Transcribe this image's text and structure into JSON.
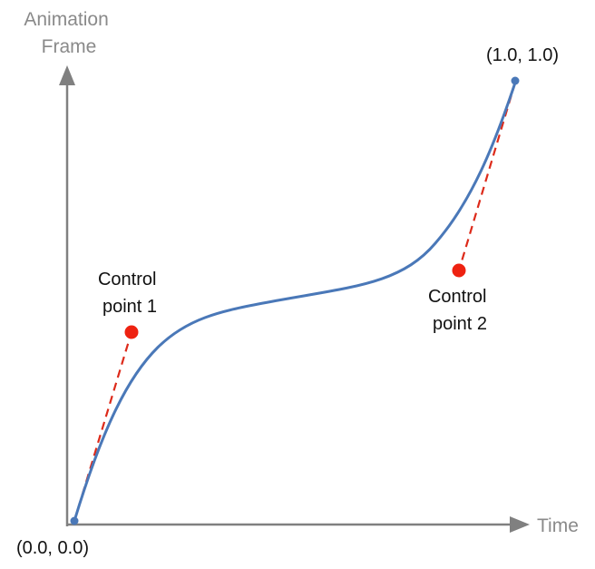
{
  "y_axis": {
    "title_line1": "Animation",
    "title_line2": "Frame"
  },
  "x_axis": {
    "title": "Time"
  },
  "endpoints": {
    "start_label": "(0.0, 0.0)",
    "end_label": "(1.0, 1.0)"
  },
  "control_points": [
    {
      "label_line1": "Control",
      "label_line2": "point 1"
    },
    {
      "label_line1": "Control",
      "label_line2": "point 2"
    }
  ],
  "colors": {
    "axis": "#808080",
    "curve": "#4a78b8",
    "endpoint": "#4a78b8",
    "control_point": "#ee2211",
    "control_line": "#dd2a1a"
  }
}
